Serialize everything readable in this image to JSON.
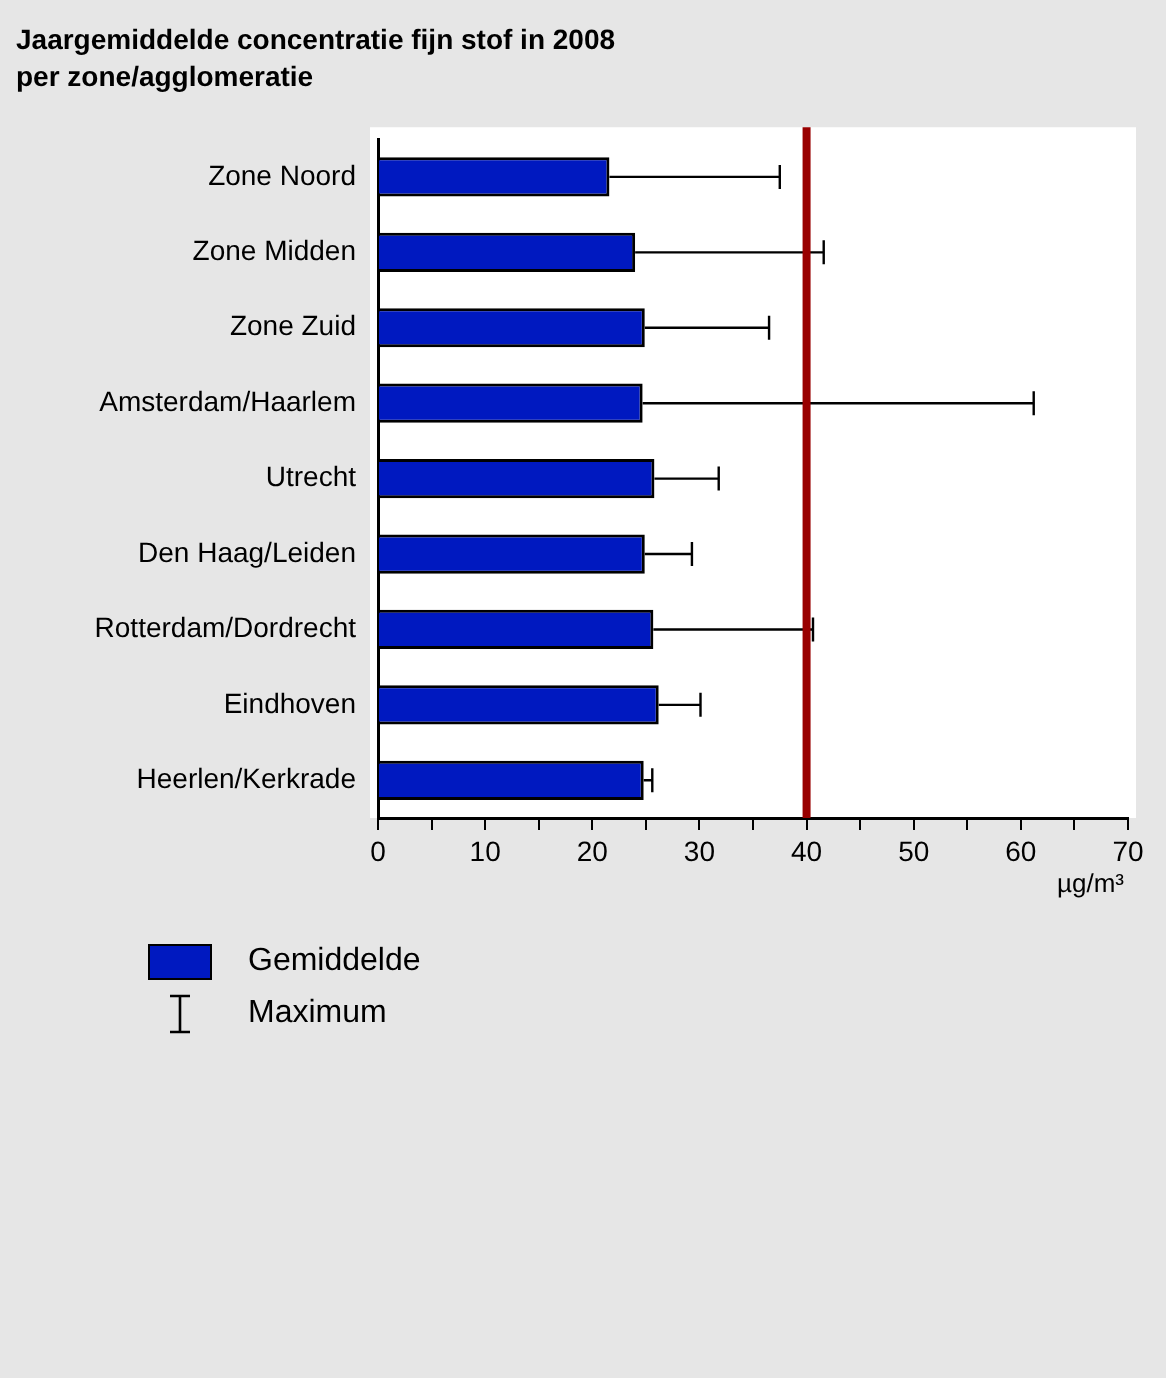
{
  "chart_data": {
    "type": "bar",
    "orientation": "horizontal",
    "title": "Jaargemiddelde concentratie fijn stof in 2008",
    "subtitle": "per zone/agglomeratie",
    "xlabel": "µg/m³",
    "categories": [
      "Zone Noord",
      "Zone Midden",
      "Zone Zuid",
      "Amsterdam/Haarlem",
      "Utrecht",
      "Den Haag/Leiden",
      "Rotterdam/Dordrecht",
      "Eindhoven",
      "Heerlen/Kerkrade"
    ],
    "series": [
      {
        "name": "Gemiddelde",
        "color": "#0019c0",
        "values": [
          21.6,
          24.0,
          24.9,
          24.7,
          25.8,
          24.9,
          25.7,
          26.2,
          24.8
        ],
        "errors": [
          [
            21.6,
            37.5
          ],
          [
            24.0,
            41.6
          ],
          [
            24.9,
            36.5
          ],
          [
            24.7,
            61.2
          ],
          [
            25.8,
            31.8
          ],
          [
            24.9,
            29.3
          ],
          [
            25.7,
            40.6
          ],
          [
            26.2,
            30.1
          ],
          [
            24.8,
            25.6
          ]
        ]
      }
    ],
    "xlim": [
      0,
      70
    ],
    "xticks": [
      0,
      {
        "value": 5,
        "label": null
      },
      10,
      {
        "value": 15,
        "label": null
      },
      20,
      {
        "value": 25,
        "label": null
      },
      30,
      {
        "value": 35,
        "label": null
      },
      40,
      {
        "value": 45,
        "label": null
      },
      50,
      {
        "value": 55,
        "label": null
      },
      60,
      {
        "value": 65,
        "label": null
      },
      70
    ],
    "ref_lines": [
      {
        "axis": "x",
        "value": 40,
        "color": "#990000"
      }
    ],
    "annotations": [
      "Maximum"
    ],
    "grid": false,
    "legend": "bottom left"
  }
}
